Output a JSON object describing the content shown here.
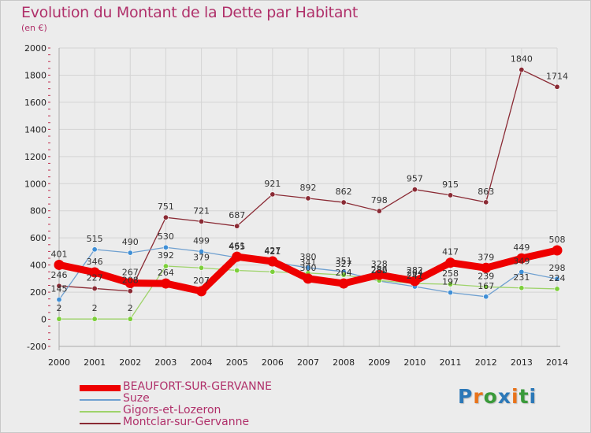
{
  "title": "Evolution du Montant de la Dette par Habitant",
  "subtitle": "(en €)",
  "logo": {
    "text": "Proxiti",
    "letter_colors": [
      "#2b78b8",
      "#e8731a",
      "#3a9a3a",
      "#2b78b8",
      "#e8731a",
      "#3a9a3a",
      "#2b78b8"
    ]
  },
  "chart_data": {
    "type": "line",
    "title": "Evolution du Montant de la Dette par Habitant",
    "subtitle": "(en €)",
    "x": [
      "2000",
      "2001",
      "2002",
      "2003",
      "2004",
      "2005",
      "2006",
      "2007",
      "2008",
      "2009",
      "2010",
      "2011",
      "2012",
      "2013",
      "2014"
    ],
    "ylim": [
      -200,
      2000
    ],
    "yticks": [
      -200,
      0,
      200,
      400,
      600,
      800,
      1000,
      1200,
      1400,
      1600,
      1800,
      2000
    ],
    "grid": true,
    "legend_position": "bottom-left",
    "series": [
      {
        "name": "BEAUFORT-SUR-GERVANNE",
        "color": "#ee0000",
        "marker_color": "#ee0000",
        "emphasis": true,
        "values": [
          401,
          346,
          267,
          264,
          207,
          461,
          427,
          300,
          264,
          328,
          282,
          417,
          379,
          449,
          508
        ],
        "labels": [
          "401",
          "346",
          "267",
          "264",
          "207",
          "461",
          "427",
          "300",
          "264",
          "328",
          "282",
          "417",
          "379",
          "449",
          "508"
        ]
      },
      {
        "name": "Suze",
        "color": "#6fa0d0",
        "marker_color": "#3f8fd6",
        "values": [
          145,
          515,
          490,
          530,
          499,
          455,
          421,
          380,
          351,
          282,
          241,
          197,
          167,
          349,
          298
        ],
        "labels": [
          "145",
          "515",
          "490",
          "530",
          "499",
          "455",
          "421",
          "380",
          "351",
          "282",
          "241",
          "197",
          "167",
          "349",
          "298"
        ]
      },
      {
        "name": "Gigors-et-Lozeron",
        "color": "#9ed36a",
        "marker_color": "#7ccf3a",
        "values": [
          2,
          2,
          2,
          392,
          379,
          360,
          350,
          341,
          327,
          286,
          264,
          258,
          239,
          231,
          224
        ],
        "labels": [
          "2",
          "2",
          "2",
          "392",
          "379",
          "",
          "",
          "341",
          "327",
          "286",
          "264",
          "258",
          "239",
          "231",
          "224"
        ]
      },
      {
        "name": "Montclar-sur-Gervanne",
        "color": "#8a2a34",
        "marker_color": "#8a2a34",
        "values": [
          246,
          227,
          208,
          751,
          721,
          687,
          921,
          892,
          862,
          798,
          957,
          915,
          863,
          1840,
          1714
        ],
        "labels": [
          "246",
          "227",
          "208",
          "751",
          "721",
          "687",
          "921",
          "892",
          "862",
          "798",
          "957",
          "915",
          "863",
          "1840",
          "1714"
        ]
      }
    ]
  }
}
